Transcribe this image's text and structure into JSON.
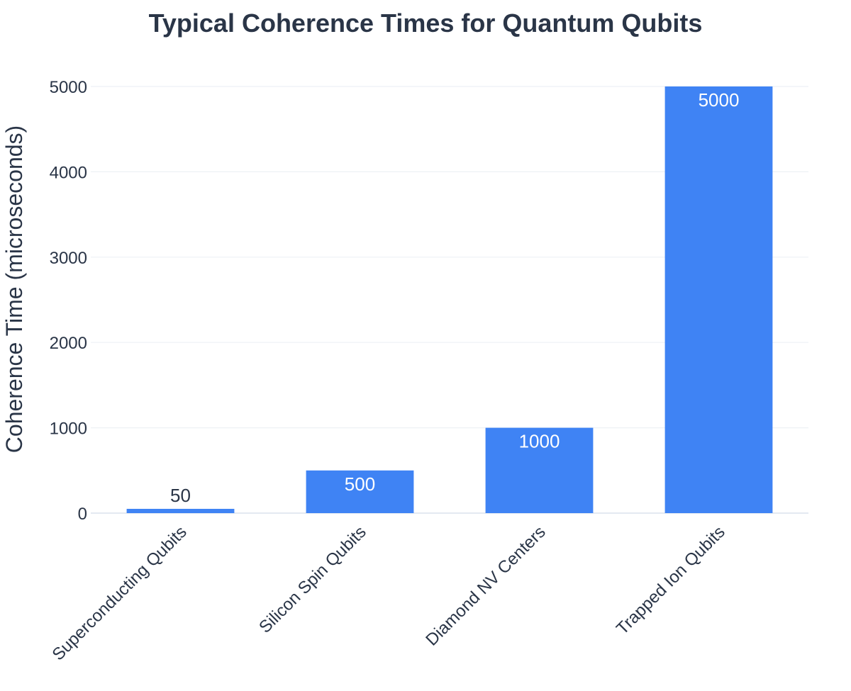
{
  "chart_data": {
    "type": "bar",
    "title": "Typical Coherence Times for Quantum Qubits",
    "xlabel": "",
    "ylabel": "Coherence Time (microseconds)",
    "categories": [
      "Superconducting Qubits",
      "Silicon Spin Qubits",
      "Diamond NV Centers",
      "Trapped Ion Qubits"
    ],
    "values": [
      50,
      500,
      1000,
      5000
    ],
    "data_labels": [
      "50",
      "500",
      "1000",
      "5000"
    ],
    "ylim": [
      0,
      5000
    ],
    "yticks": [
      0,
      1000,
      2000,
      3000,
      4000,
      5000
    ],
    "grid": true,
    "legend": "none",
    "colors": {
      "bar": "#3f83f4",
      "text": "#2a3547",
      "grid": "#eef1f5",
      "label_inside": "#ffffff"
    }
  }
}
